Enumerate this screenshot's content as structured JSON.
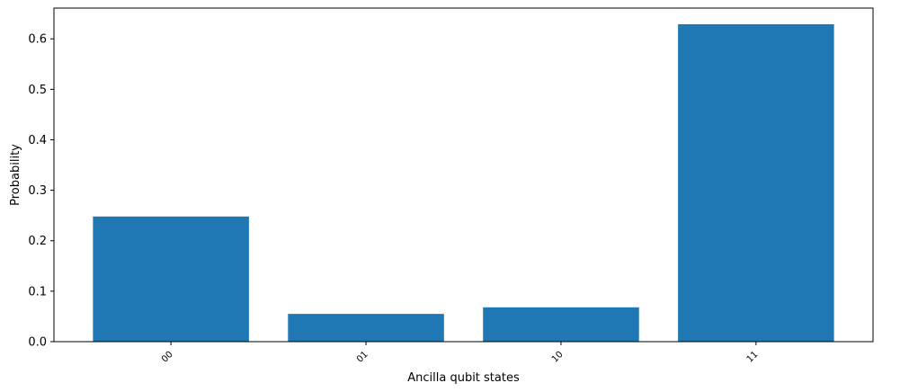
{
  "chart_data": {
    "type": "bar",
    "categories": [
      "00",
      "01",
      "10",
      "11"
    ],
    "values": [
      0.248,
      0.055,
      0.068,
      0.629
    ],
    "title": "",
    "xlabel": "Ancilla qubit states",
    "ylabel": "Probability",
    "ylim": [
      0,
      0.661
    ],
    "yticks": [
      0.0,
      0.1,
      0.2,
      0.3,
      0.4,
      0.5,
      0.6
    ],
    "ytick_labels": [
      "0.0",
      "0.1",
      "0.2",
      "0.3",
      "0.4",
      "0.5",
      "0.6"
    ],
    "bar_color": "#1f77b4",
    "grid": false,
    "legend": "none"
  }
}
